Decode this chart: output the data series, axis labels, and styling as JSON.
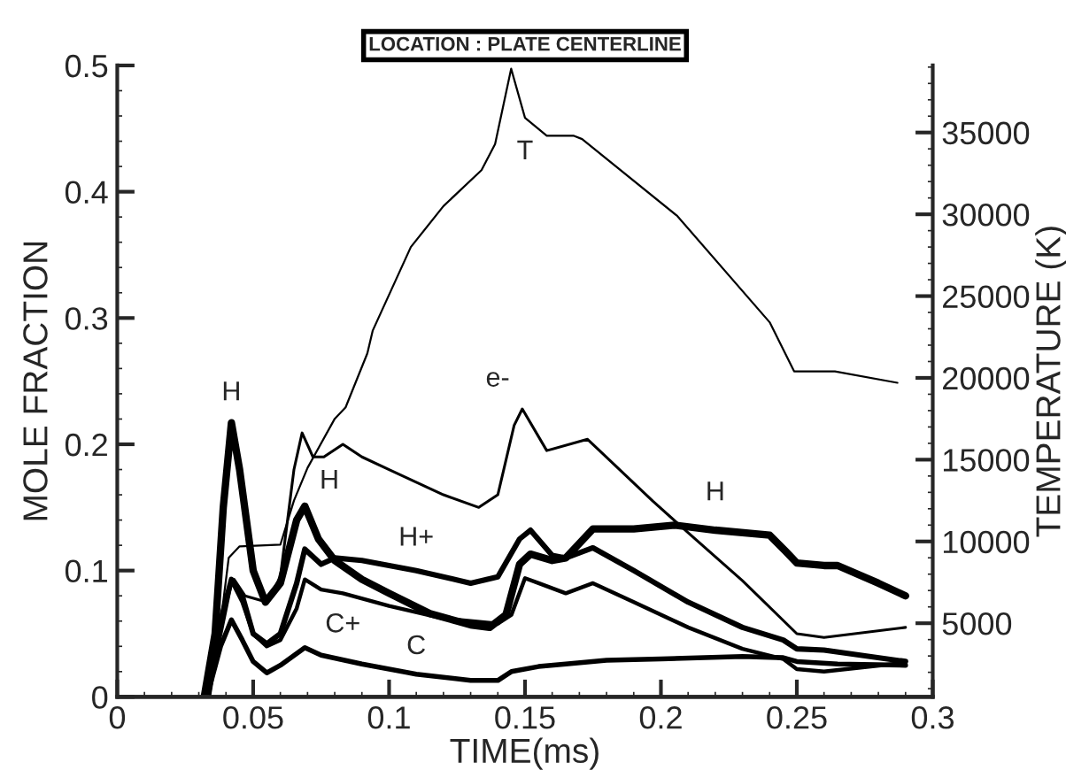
{
  "chart_data": {
    "type": "line",
    "title": "LOCATION : PLATE CENTERLINE",
    "xlabel": "TIME(ms)",
    "ylabel": "MOLE FRACTION",
    "y2label": "TEMPERATURE (K)",
    "xlim": [
      0,
      0.3
    ],
    "xticks": [
      0,
      0.05,
      0.1,
      0.15,
      0.2,
      0.25,
      0.3
    ],
    "ylim": [
      0,
      0.5
    ],
    "yticks": [
      0,
      0.1,
      0.2,
      0.3,
      0.4,
      0.5
    ],
    "y2lim": [
      500,
      39100
    ],
    "y2ticks": [
      5000,
      10000,
      15000,
      20000,
      25000,
      30000,
      35000
    ],
    "grid": false,
    "legend": false,
    "marker": "none",
    "line_style": "solid",
    "series": [
      {
        "color": "#000000",
        "x": [
          0.032,
          0.036,
          0.039,
          0.042,
          0.045,
          0.05,
          0.0545,
          0.06,
          0.066,
          0.069,
          0.074,
          0.08,
          0.09,
          0.1,
          0.115,
          0.13,
          0.137,
          0.143,
          0.148,
          0.152,
          0.16,
          0.165,
          0.175,
          0.19,
          0.205,
          0.22,
          0.24,
          0.246,
          0.25,
          0.26,
          0.265,
          0.28,
          0.29
        ],
        "values": [
          0,
          0.05,
          0.15,
          0.217,
          0.18,
          0.1,
          0.075,
          0.09,
          0.14,
          0.151,
          0.125,
          0.108,
          0.093,
          0.082,
          0.066,
          0.057,
          0.055,
          0.065,
          0.105,
          0.113,
          0.108,
          0.11,
          0.133,
          0.133,
          0.136,
          0.132,
          0.128,
          0.115,
          0.106,
          0.104,
          0.104,
          0.09,
          0.08
        ]
      },
      {
        "color": "#000000",
        "x": [
          0.033,
          0.038,
          0.042,
          0.046,
          0.05,
          0.055,
          0.06,
          0.066,
          0.069,
          0.075,
          0.08,
          0.09,
          0.11,
          0.13,
          0.14,
          0.148,
          0.152,
          0.16,
          0.165,
          0.175,
          0.19,
          0.21,
          0.23,
          0.245,
          0.25,
          0.26,
          0.29
        ],
        "values": [
          0,
          0.06,
          0.093,
          0.08,
          0.05,
          0.042,
          0.05,
          0.09,
          0.117,
          0.105,
          0.11,
          0.108,
          0.1,
          0.09,
          0.095,
          0.125,
          0.132,
          0.112,
          0.11,
          0.118,
          0.1,
          0.075,
          0.055,
          0.045,
          0.038,
          0.037,
          0.028
        ]
      },
      {
        "color": "#000000",
        "x": [
          0.033,
          0.038,
          0.042,
          0.046,
          0.05,
          0.055,
          0.06,
          0.066,
          0.069,
          0.075,
          0.083,
          0.1,
          0.12,
          0.14,
          0.145,
          0.15,
          0.155,
          0.165,
          0.175,
          0.19,
          0.21,
          0.23,
          0.245,
          0.25,
          0.26,
          0.29
        ],
        "values": [
          0,
          0.05,
          0.092,
          0.075,
          0.05,
          0.04,
          0.045,
          0.07,
          0.093,
          0.085,
          0.082,
          0.072,
          0.062,
          0.058,
          0.065,
          0.094,
          0.09,
          0.082,
          0.09,
          0.075,
          0.055,
          0.038,
          0.03,
          0.022,
          0.02,
          0.027
        ]
      },
      {
        "color": "#000000",
        "x": [
          0.033,
          0.038,
          0.042,
          0.046,
          0.05,
          0.055,
          0.06,
          0.069,
          0.075,
          0.09,
          0.11,
          0.13,
          0.14,
          0.145,
          0.155,
          0.165,
          0.18,
          0.2,
          0.23,
          0.245,
          0.25,
          0.265,
          0.29
        ],
        "values": [
          0,
          0.04,
          0.061,
          0.045,
          0.028,
          0.019,
          0.025,
          0.039,
          0.033,
          0.026,
          0.018,
          0.013,
          0.013,
          0.02,
          0.024,
          0.026,
          0.029,
          0.03,
          0.032,
          0.031,
          0.028,
          0.026,
          0.025
        ]
      },
      {
        "color": "#000000",
        "x": [
          0.034,
          0.04,
          0.043,
          0.047,
          0.055,
          0.06,
          0.065,
          0.068,
          0.072,
          0.076,
          0.083,
          0.09,
          0.1,
          0.12,
          0.133,
          0.14,
          0.146,
          0.149,
          0.158,
          0.173,
          0.197,
          0.21,
          0.23,
          0.25,
          0.26,
          0.29
        ],
        "values": [
          0,
          0.08,
          0.093,
          0.08,
          0.075,
          0.095,
          0.18,
          0.209,
          0.19,
          0.19,
          0.2,
          0.19,
          0.18,
          0.16,
          0.15,
          0.16,
          0.215,
          0.228,
          0.195,
          0.204,
          0.155,
          0.13,
          0.092,
          0.05,
          0.047,
          0.055
        ]
      },
      {
        "name": "T",
        "color": "#000000",
        "axis": "y2",
        "x": [
          0.034,
          0.038,
          0.041,
          0.045,
          0.06,
          0.065,
          0.07,
          0.08,
          0.084,
          0.092,
          0.094,
          0.108,
          0.12,
          0.134,
          0.139,
          0.1449,
          0.15,
          0.158,
          0.168,
          0.171,
          0.206,
          0.24,
          0.249,
          0.264,
          0.287
        ],
        "values": [
          500,
          5000,
          9000,
          9700,
          9800,
          12500,
          14500,
          17500,
          18200,
          21500,
          22900,
          28000,
          30500,
          32700,
          34300,
          38900,
          35900,
          34800,
          34800,
          34600,
          29900,
          23400,
          20400,
          20400,
          19700
        ]
      }
    ],
    "annotations": [
      {
        "text": "H",
        "x": 0.042,
        "y": 0.217
      },
      {
        "text": "H",
        "x": 0.069,
        "y": 0.151
      },
      {
        "text": "H+",
        "x": 0.11,
        "y": 0.1
      },
      {
        "text": "C+",
        "x": 0.083,
        "y": 0.082
      },
      {
        "text": "C",
        "x": 0.11,
        "y": 0.018
      },
      {
        "text": "e-",
        "x": 0.149,
        "y": 0.228
      },
      {
        "text": "H",
        "x": 0.22,
        "y": 0.132
      }
    ]
  }
}
